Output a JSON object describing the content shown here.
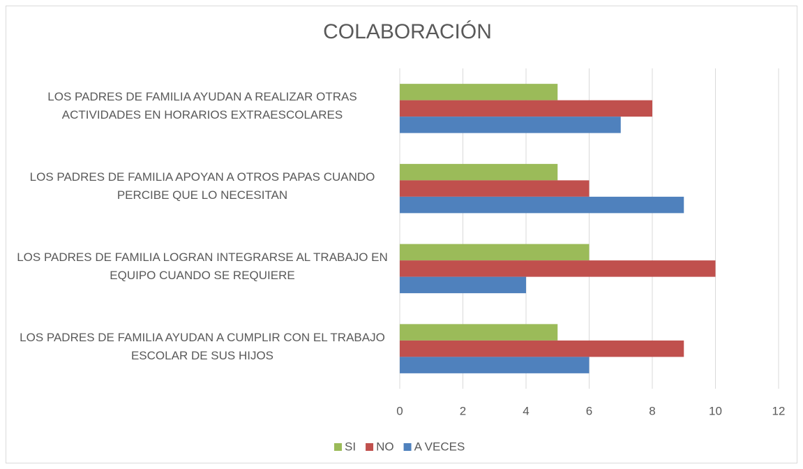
{
  "chart_data": {
    "type": "bar",
    "orientation": "horizontal",
    "title": "COLABORACIÓN",
    "categories": [
      "LOS PADRES DE FAMILIA AYUDAN A REALIZAR OTRAS ACTIVIDADES EN HORARIOS EXTRAESCOLARES",
      "LOS PADRES DE FAMILIA APOYAN A OTROS PAPAS CUANDO PERCIBE QUE LO NECESITAN",
      "LOS PADRES DE FAMILIA LOGRAN INTEGRARSE AL TRABAJO EN EQUIPO CUANDO SE REQUIERE",
      "LOS PADRES DE FAMILIA AYUDAN A CUMPLIR CON EL TRABAJO ESCOLAR DE SUS HIJOS"
    ],
    "series": [
      {
        "name": "SI",
        "color": "#9bbb59",
        "values": [
          5,
          5,
          6,
          5
        ]
      },
      {
        "name": "NO",
        "color": "#c0504d",
        "values": [
          8,
          6,
          10,
          9
        ]
      },
      {
        "name": "A VECES",
        "color": "#4f81bd",
        "values": [
          7,
          9,
          4,
          6
        ]
      }
    ],
    "xlim": [
      0,
      12
    ],
    "xticks": [
      0,
      2,
      4,
      6,
      8,
      10,
      12
    ],
    "grid": true,
    "legend": "bottom"
  }
}
